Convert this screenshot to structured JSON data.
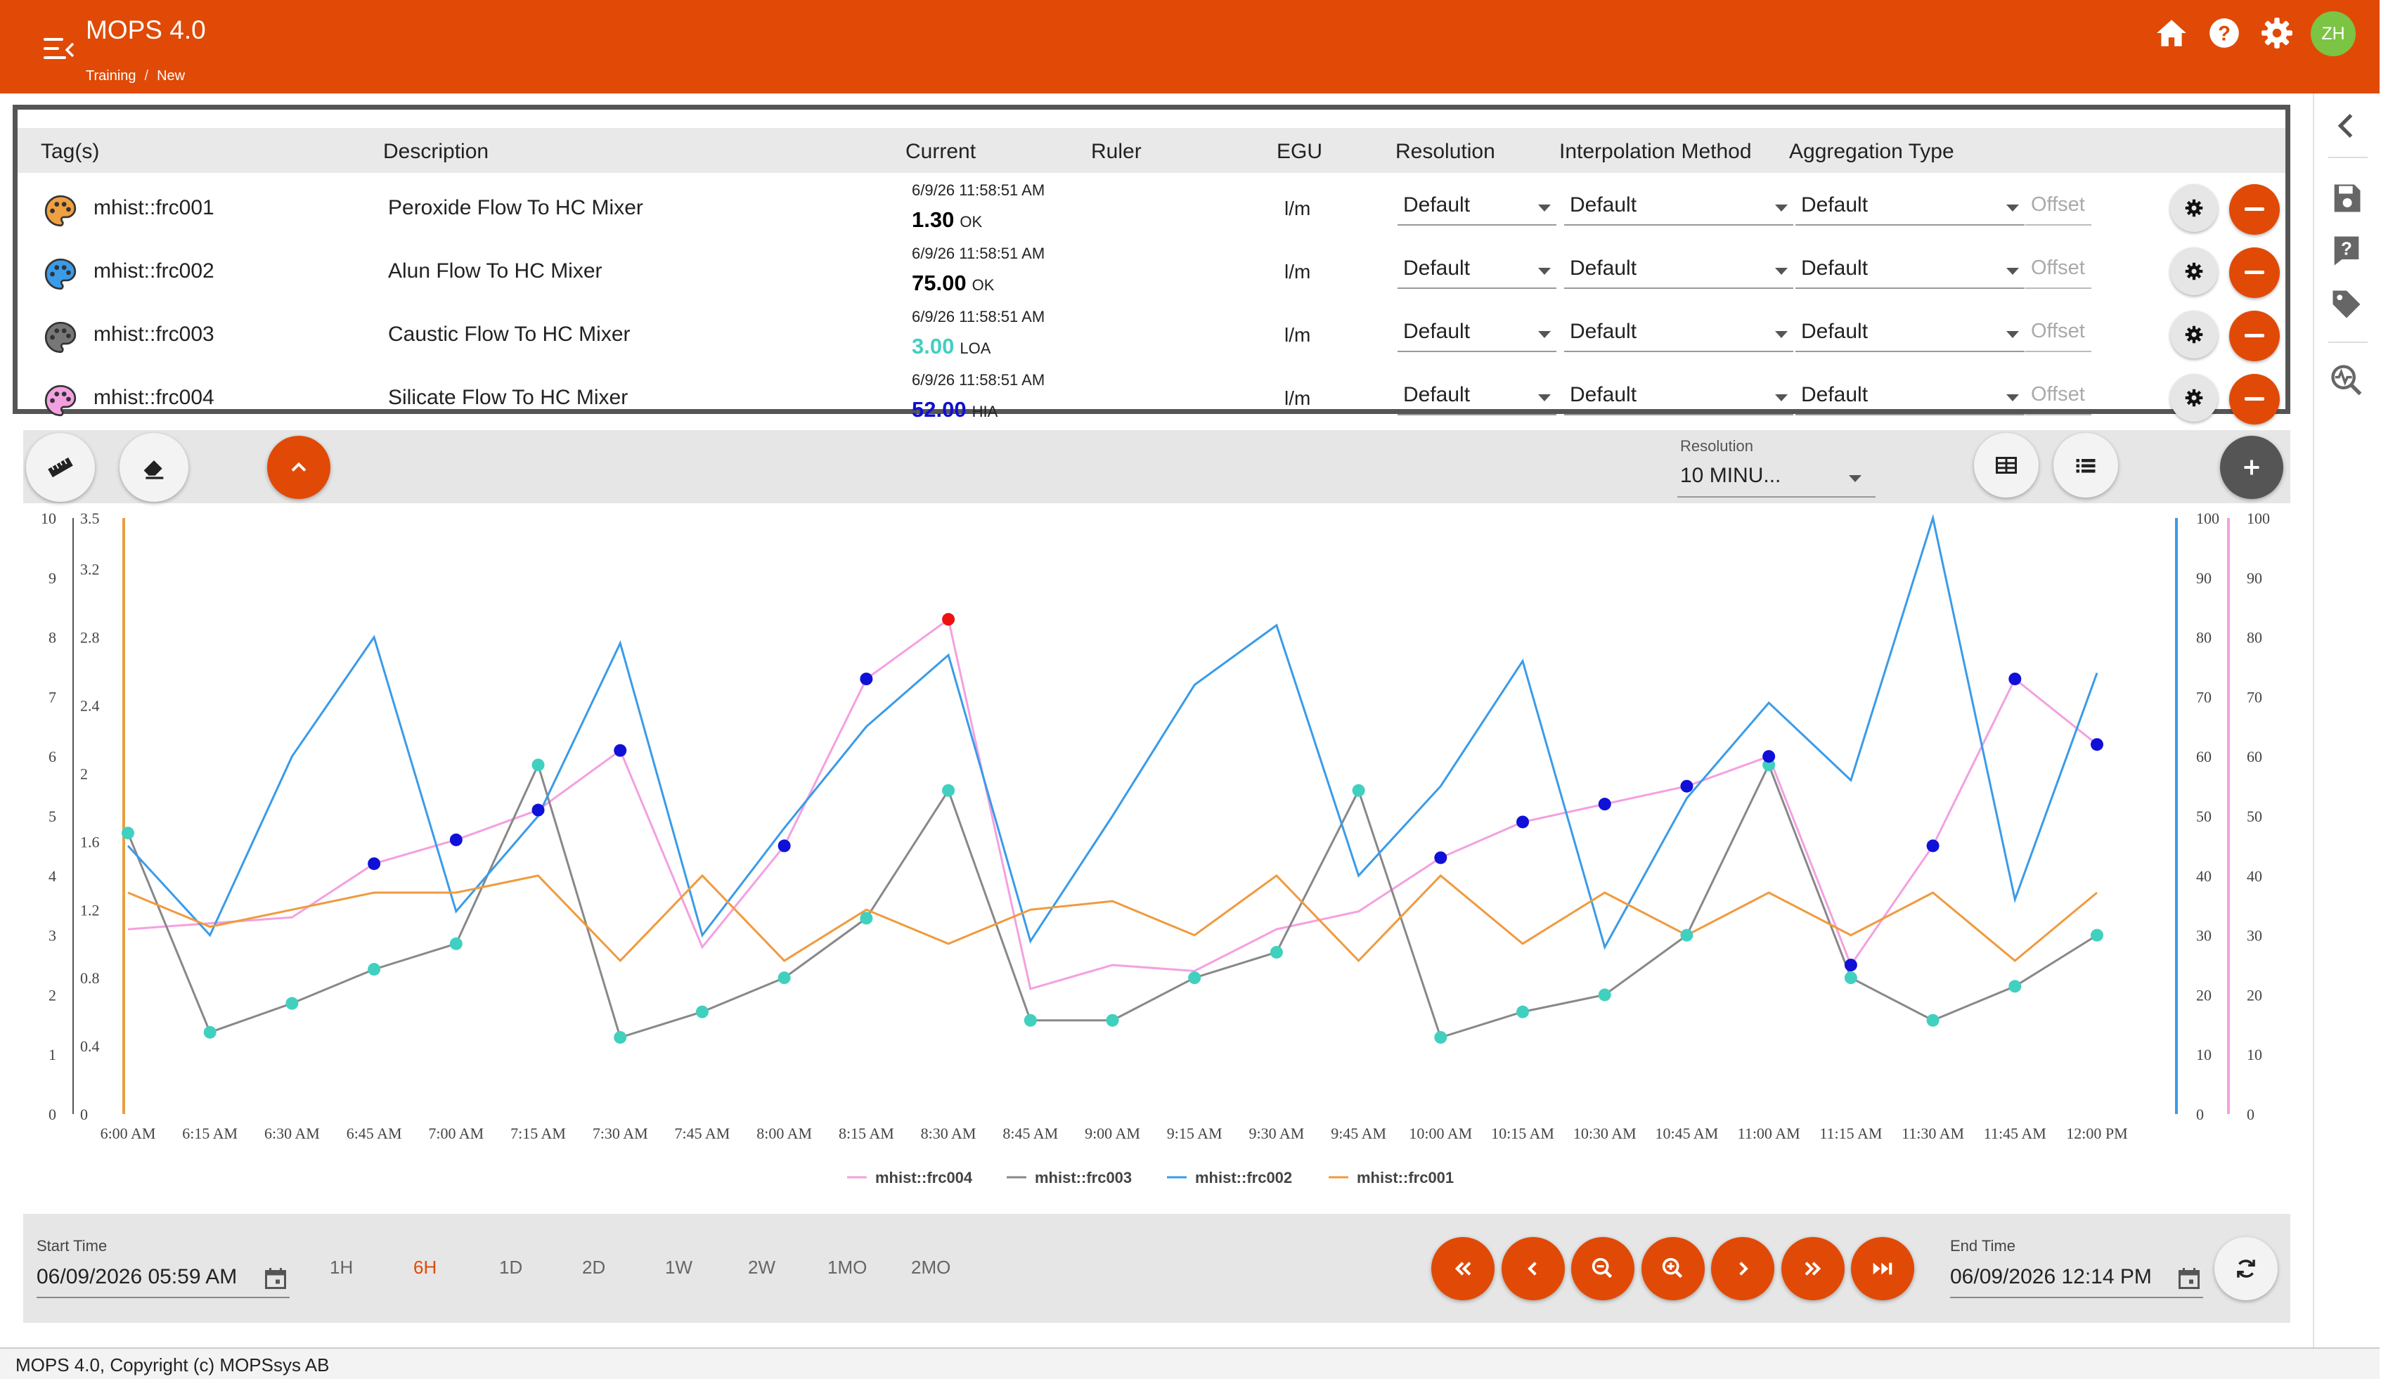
{
  "app": {
    "title": "MOPS 4.0",
    "breadcrumb": [
      "Training",
      "New"
    ],
    "avatar_initials": "ZH",
    "accent": "#e04a06"
  },
  "tag_table": {
    "headers": [
      "Tag(s)",
      "Description",
      "Current",
      "Ruler",
      "EGU",
      "Resolution",
      "Interpolation Method",
      "Aggregation Type"
    ],
    "rows": [
      {
        "tag": "mhist::frc001",
        "description": "Peroxide Flow To HC Mixer",
        "time": "6/9/26 11:58:51 AM",
        "value": "1.30",
        "status": "OK",
        "egu": "l/m",
        "resolution": "Default",
        "interpolation": "Default",
        "aggregation": "Default",
        "offset_placeholder": "Offset",
        "color": "#f0a040",
        "value_color": "#000000"
      },
      {
        "tag": "mhist::frc002",
        "description": "Alun Flow To HC Mixer",
        "time": "6/9/26 11:58:51 AM",
        "value": "75.00",
        "status": "OK",
        "egu": "l/m",
        "resolution": "Default",
        "interpolation": "Default",
        "aggregation": "Default",
        "offset_placeholder": "Offset",
        "color": "#3a9be8",
        "value_color": "#000000"
      },
      {
        "tag": "mhist::frc003",
        "description": "Caustic Flow To HC Mixer",
        "time": "6/9/26 11:58:51 AM",
        "value": "3.00",
        "status": "LOA",
        "egu": "l/m",
        "resolution": "Default",
        "interpolation": "Default",
        "aggregation": "Default",
        "offset_placeholder": "Offset",
        "color": "#777777",
        "value_color": "#40d0c0"
      },
      {
        "tag": "mhist::frc004",
        "description": "Silicate Flow To HC Mixer",
        "time": "6/9/26 11:58:51 AM",
        "value": "52.00",
        "status": "HIA",
        "egu": "l/m",
        "resolution": "Default",
        "interpolation": "Default",
        "aggregation": "Default",
        "offset_placeholder": "Offset",
        "color": "#f4a0e0",
        "value_color": "#1010d0"
      }
    ]
  },
  "toolbar": {
    "resolution_label": "Resolution",
    "resolution_value": "10 MINU...",
    "icons": [
      "ruler-icon",
      "eraser-icon",
      "chevron-up-icon",
      "table-icon",
      "list-icon",
      "plus-icon"
    ]
  },
  "chart_data": {
    "type": "line",
    "x": [
      "6:00 AM",
      "6:15 AM",
      "6:30 AM",
      "6:45 AM",
      "7:00 AM",
      "7:15 AM",
      "7:30 AM",
      "7:45 AM",
      "8:00 AM",
      "8:15 AM",
      "8:30 AM",
      "8:45 AM",
      "9:00 AM",
      "9:15 AM",
      "9:30 AM",
      "9:45 AM",
      "10:00 AM",
      "10:15 AM",
      "10:30 AM",
      "10:45 AM",
      "11:00 AM",
      "11:15 AM",
      "11:30 AM",
      "11:45 AM",
      "12:00 PM"
    ],
    "axes": {
      "left_outer": {
        "min": 0,
        "max": 10,
        "ticks": [
          "0",
          "1",
          "2",
          "3",
          "4",
          "5",
          "6",
          "7",
          "8",
          "9",
          "10"
        ]
      },
      "left_inner": {
        "min": 0,
        "max": 3.5,
        "ticks": [
          "0",
          "0.4",
          "0.8",
          "1.2",
          "1.6",
          "2",
          "2.4",
          "2.8",
          "3.2",
          "3.5"
        ]
      },
      "right_inner": {
        "min": 0,
        "max": 100,
        "ticks": [
          "0",
          "10",
          "20",
          "30",
          "40",
          "50",
          "60",
          "70",
          "80",
          "90",
          "100"
        ]
      },
      "right_outer": {
        "min": 0,
        "max": 100,
        "ticks": [
          "0",
          "10",
          "20",
          "30",
          "40",
          "50",
          "60",
          "70",
          "80",
          "90",
          "100"
        ]
      }
    },
    "series": [
      {
        "name": "mhist::frc004",
        "color": "#f4a0e0",
        "axis": "right_outer",
        "points": [
          [
            "6:00 AM",
            31
          ],
          [
            "6:15 AM",
            32
          ],
          [
            "6:30 AM",
            33
          ],
          [
            "6:45 AM",
            42
          ],
          [
            "7:00 AM",
            46
          ],
          [
            "7:15 AM",
            51
          ],
          [
            "7:30 AM",
            61
          ],
          [
            "7:45 AM",
            28
          ],
          [
            "8:00 AM",
            45
          ],
          [
            "8:15 AM",
            73
          ],
          [
            "8:30 AM",
            83
          ],
          [
            "8:45 AM",
            21
          ],
          [
            "9:00 AM",
            25
          ],
          [
            "9:15 AM",
            24
          ],
          [
            "9:30 AM",
            31
          ],
          [
            "9:45 AM",
            34
          ],
          [
            "10:00 AM",
            43
          ],
          [
            "10:15 AM",
            49
          ],
          [
            "10:30 AM",
            52
          ],
          [
            "10:45 AM",
            55
          ],
          [
            "11:00 AM",
            60
          ],
          [
            "11:15 AM",
            25
          ],
          [
            "11:30 AM",
            45
          ],
          [
            "11:45 AM",
            73
          ],
          [
            "12:00 PM",
            62
          ]
        ]
      },
      {
        "name": "mhist::frc003",
        "color": "#888888",
        "axis": "left_inner",
        "points": [
          [
            "6:00 AM",
            1.65
          ],
          [
            "6:15 AM",
            0.48
          ],
          [
            "6:30 AM",
            0.65
          ],
          [
            "6:45 AM",
            0.85
          ],
          [
            "7:00 AM",
            1.0
          ],
          [
            "7:15 AM",
            2.05
          ],
          [
            "7:30 AM",
            0.45
          ],
          [
            "7:45 AM",
            0.6
          ],
          [
            "8:00 AM",
            0.8
          ],
          [
            "8:15 AM",
            1.15
          ],
          [
            "8:30 AM",
            1.9
          ],
          [
            "8:45 AM",
            0.55
          ],
          [
            "9:00 AM",
            0.55
          ],
          [
            "9:15 AM",
            0.8
          ],
          [
            "9:30 AM",
            0.95
          ],
          [
            "9:45 AM",
            1.9
          ],
          [
            "10:00 AM",
            0.45
          ],
          [
            "10:15 AM",
            0.6
          ],
          [
            "10:30 AM",
            0.7
          ],
          [
            "10:45 AM",
            1.05
          ],
          [
            "11:00 AM",
            2.05
          ],
          [
            "11:15 AM",
            0.8
          ],
          [
            "11:30 AM",
            0.55
          ],
          [
            "11:45 AM",
            0.75
          ],
          [
            "12:00 PM",
            1.05
          ]
        ]
      },
      {
        "name": "mhist::frc002",
        "color": "#3a9be8",
        "axis": "right_inner",
        "points": [
          [
            "6:00 AM",
            45
          ],
          [
            "6:15 AM",
            30
          ],
          [
            "6:30 AM",
            60
          ],
          [
            "6:45 AM",
            80
          ],
          [
            "7:00 AM",
            34
          ],
          [
            "7:15 AM",
            50
          ],
          [
            "7:30 AM",
            79
          ],
          [
            "7:45 AM",
            30
          ],
          [
            "8:00 AM",
            48
          ],
          [
            "8:15 AM",
            65
          ],
          [
            "8:30 AM",
            77
          ],
          [
            "8:45 AM",
            29
          ],
          [
            "9:00 AM",
            50
          ],
          [
            "9:15 AM",
            72
          ],
          [
            "9:30 AM",
            82
          ],
          [
            "9:45 AM",
            40
          ],
          [
            "10:00 AM",
            55
          ],
          [
            "10:15 AM",
            76
          ],
          [
            "10:30 AM",
            28
          ],
          [
            "10:45 AM",
            53
          ],
          [
            "11:00 AM",
            69
          ],
          [
            "11:15 AM",
            56
          ],
          [
            "11:30 AM",
            100
          ],
          [
            "11:45 AM",
            36
          ],
          [
            "12:00 PM",
            74
          ]
        ]
      },
      {
        "name": "mhist::frc001",
        "color": "#f09a3e",
        "axis": "left_inner",
        "points": [
          [
            "6:00 AM",
            1.3
          ],
          [
            "6:15 AM",
            1.1
          ],
          [
            "6:30 AM",
            1.2
          ],
          [
            "6:45 AM",
            1.3
          ],
          [
            "7:00 AM",
            1.3
          ],
          [
            "7:15 AM",
            1.4
          ],
          [
            "7:30 AM",
            0.9
          ],
          [
            "7:45 AM",
            1.4
          ],
          [
            "8:00 AM",
            0.9
          ],
          [
            "8:15 AM",
            1.2
          ],
          [
            "8:30 AM",
            1.0
          ],
          [
            "8:45 AM",
            1.2
          ],
          [
            "9:00 AM",
            1.25
          ],
          [
            "9:15 AM",
            1.05
          ],
          [
            "9:30 AM",
            1.4
          ],
          [
            "9:45 AM",
            0.9
          ],
          [
            "10:00 AM",
            1.4
          ],
          [
            "10:15 AM",
            1.0
          ],
          [
            "10:30 AM",
            1.3
          ],
          [
            "10:45 AM",
            1.05
          ],
          [
            "11:00 AM",
            1.3
          ],
          [
            "11:15 AM",
            1.05
          ],
          [
            "11:30 AM",
            1.3
          ],
          [
            "11:45 AM",
            0.9
          ],
          [
            "12:00 PM",
            1.3
          ]
        ]
      }
    ],
    "legend_position": "bottom-center",
    "grid": false
  },
  "timebar": {
    "start_label": "Start Time",
    "start_value": "06/09/2026 05:59 AM",
    "end_label": "End Time",
    "end_value": "06/09/2026 12:14 PM",
    "ranges": [
      "1H",
      "6H",
      "1D",
      "2D",
      "1W",
      "2W",
      "1MO",
      "2MO"
    ],
    "active_range": "6H"
  },
  "footer": {
    "text": "MOPS 4.0, Copyright (c) MOPSsys AB"
  }
}
